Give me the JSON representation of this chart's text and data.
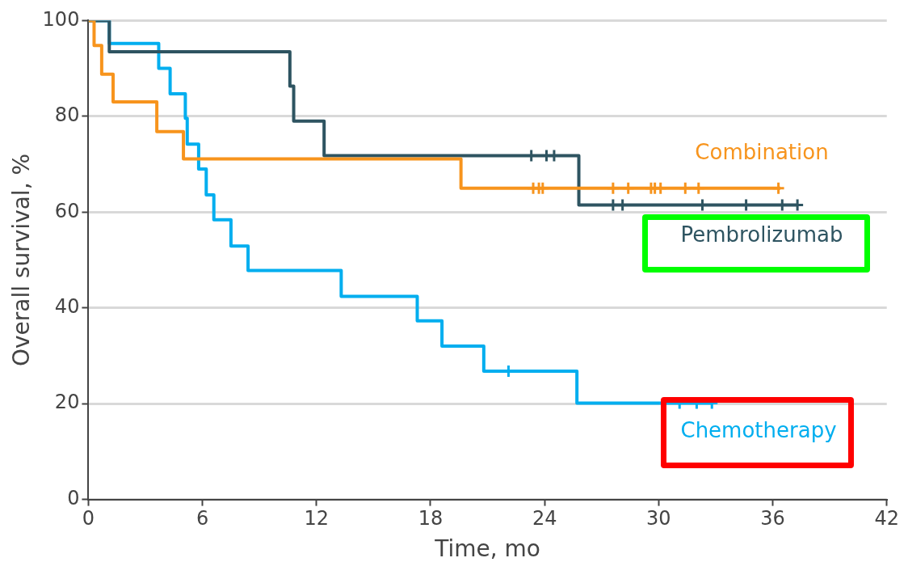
{
  "chart_data": {
    "type": "step",
    "xlabel": "Time, mo",
    "ylabel": "Overall survival, %",
    "xlim": [
      0,
      42
    ],
    "xticks": [
      0,
      6,
      12,
      18,
      24,
      30,
      36,
      42
    ],
    "ylim": [
      0,
      100
    ],
    "yticks": [
      0,
      20,
      40,
      60,
      80,
      100
    ],
    "grid": "y",
    "legend": "right",
    "series": [
      {
        "name": "Combination",
        "color": "#f7941d",
        "x": [
          0,
          0.3,
          0.7,
          1.3,
          3.6,
          5.0,
          19.6,
          36.4
        ],
        "values": [
          100,
          100,
          94.8,
          88.8,
          83,
          76.8,
          71.1,
          65
        ]
      },
      {
        "name": "Pembrolizumab",
        "color": "#2e5461",
        "x": [
          0,
          1.1,
          10.6,
          10.8,
          12.4,
          25.8,
          37.3
        ],
        "values": [
          100,
          100,
          93.5,
          86.3,
          79,
          71.8,
          61.5
        ]
      },
      {
        "name": "Chemotherapy",
        "color": "#00aeef",
        "x": [
          0,
          1.1,
          3.7,
          4.3,
          5.1,
          5.2,
          5.8,
          6.2,
          6.6,
          7.5,
          8.4,
          13.3,
          17.3,
          18.6,
          20.8,
          25.7,
          32.8
        ],
        "values": [
          100,
          100,
          95.2,
          90,
          84.7,
          79.6,
          74.2,
          69,
          63.6,
          58.4,
          52.9,
          47.8,
          42.4,
          37.3,
          32,
          26.8,
          20.1
        ]
      },
      {
        "type": "scatter",
        "marker": "cross",
        "color": "#f7941d",
        "x": [
          23.4,
          23.7,
          23.9,
          27.6,
          28.4,
          29.6,
          29.8,
          30.1,
          31.4,
          32.1,
          36.3
        ],
        "values": [
          65,
          65,
          65,
          65,
          65,
          65,
          65,
          65,
          65,
          65,
          65
        ]
      },
      {
        "type": "scatter",
        "marker": "cross",
        "color": "#2e5461",
        "x": [
          23.3,
          24.1,
          24.5,
          27.6,
          28.1,
          32.3,
          34.6,
          36.5,
          37.3
        ],
        "values": [
          71.8,
          71.8,
          71.8,
          61.5,
          61.5,
          61.5,
          61.5,
          61.5,
          61.5
        ]
      },
      {
        "type": "scatter",
        "marker": "cross",
        "color": "#00aeef",
        "x": [
          22.1,
          31.1,
          32.0,
          32.8
        ],
        "values": [
          26.8,
          20.1,
          20.1,
          20.1
        ]
      }
    ]
  }
}
